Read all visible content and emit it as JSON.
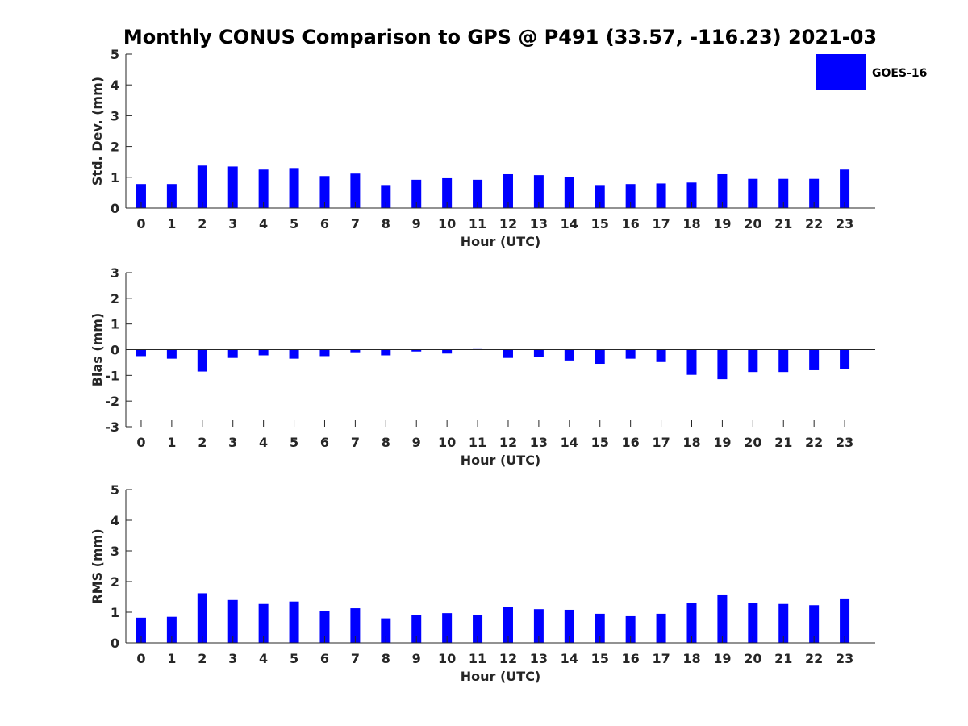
{
  "title": "Monthly CONUS Comparison to GPS @ P491 (33.57, -116.23) 2021-03",
  "legend": {
    "label": "GOES-16",
    "color": "#0000ff",
    "placement": "top-right"
  },
  "colors": {
    "bar": "#0000ff",
    "axis": "#262626"
  },
  "chart_data": [
    {
      "type": "bar",
      "categories": [
        "0",
        "1",
        "2",
        "3",
        "4",
        "5",
        "6",
        "7",
        "8",
        "9",
        "10",
        "11",
        "12",
        "13",
        "14",
        "15",
        "16",
        "17",
        "18",
        "19",
        "20",
        "21",
        "22",
        "23"
      ],
      "series": [
        {
          "name": "GOES-16",
          "values": [
            0.78,
            0.78,
            1.38,
            1.35,
            1.25,
            1.3,
            1.04,
            1.12,
            0.75,
            0.92,
            0.97,
            0.92,
            1.1,
            1.07,
            1.0,
            0.75,
            0.78,
            0.8,
            0.83,
            1.1,
            0.95,
            0.95,
            0.95,
            1.25
          ]
        }
      ],
      "xlabel": "Hour (UTC)",
      "ylabel": "Std. Dev. (mm)",
      "ylim": [
        0,
        5
      ],
      "yticks": [
        0,
        1,
        2,
        3,
        4,
        5
      ],
      "grid": false
    },
    {
      "type": "bar",
      "categories": [
        "0",
        "1",
        "2",
        "3",
        "4",
        "5",
        "6",
        "7",
        "8",
        "9",
        "10",
        "11",
        "12",
        "13",
        "14",
        "15",
        "16",
        "17",
        "18",
        "19",
        "20",
        "21",
        "22",
        "23"
      ],
      "series": [
        {
          "name": "GOES-16",
          "values": [
            -0.25,
            -0.35,
            -0.85,
            -0.32,
            -0.22,
            -0.35,
            -0.25,
            -0.1,
            -0.22,
            -0.07,
            -0.15,
            0.02,
            -0.32,
            -0.28,
            -0.42,
            -0.55,
            -0.35,
            -0.48,
            -0.98,
            -1.15,
            -0.87,
            -0.87,
            -0.8,
            -0.75
          ]
        }
      ],
      "xlabel": "Hour (UTC)",
      "ylabel": "Bias (mm)",
      "ylim": [
        -3,
        3
      ],
      "yticks": [
        -3,
        -2,
        -1,
        0,
        1,
        2,
        3
      ],
      "grid": false
    },
    {
      "type": "bar",
      "categories": [
        "0",
        "1",
        "2",
        "3",
        "4",
        "5",
        "6",
        "7",
        "8",
        "9",
        "10",
        "11",
        "12",
        "13",
        "14",
        "15",
        "16",
        "17",
        "18",
        "19",
        "20",
        "21",
        "22",
        "23"
      ],
      "series": [
        {
          "name": "GOES-16",
          "values": [
            0.82,
            0.85,
            1.62,
            1.4,
            1.27,
            1.35,
            1.05,
            1.13,
            0.8,
            0.92,
            0.97,
            0.92,
            1.17,
            1.1,
            1.08,
            0.95,
            0.87,
            0.95,
            1.3,
            1.58,
            1.3,
            1.27,
            1.23,
            1.45
          ]
        }
      ],
      "xlabel": "Hour (UTC)",
      "ylabel": "RMS (mm)",
      "ylim": [
        0,
        5
      ],
      "yticks": [
        0,
        1,
        2,
        3,
        4,
        5
      ],
      "grid": false
    }
  ]
}
